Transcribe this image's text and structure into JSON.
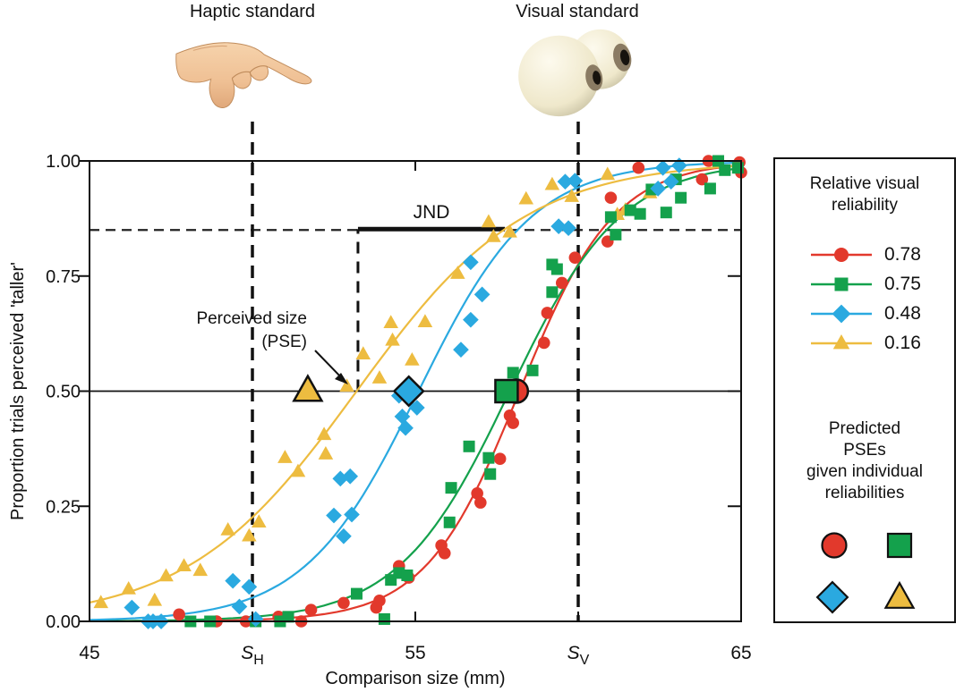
{
  "figure": {
    "haptic_label": "Haptic standard",
    "visual_label": "Visual standard"
  },
  "legend": {
    "title_lines": [
      "Relative visual",
      "reliability"
    ],
    "subtitle_lines": [
      "Predicted",
      "PSEs",
      "given individual",
      "reliabilities"
    ]
  },
  "chart_data": {
    "type": "scatter",
    "title": "",
    "xlabel": "Comparison size (mm)",
    "ylabel": "Proportion trials perceived 'taller'",
    "xlim": [
      45,
      65
    ],
    "ylim": [
      0,
      1
    ],
    "x_ticks": [
      {
        "v": 45,
        "label": "45"
      },
      {
        "v": 50,
        "label": "S",
        "sub": "H"
      },
      {
        "v": 55,
        "label": "55"
      },
      {
        "v": 60,
        "label": "S",
        "sub": "V"
      },
      {
        "v": 65,
        "label": "65"
      }
    ],
    "x_minor_ticks": [
      50,
      55,
      60
    ],
    "y_ticks": [
      {
        "v": 0.0,
        "label": "0.00"
      },
      {
        "v": 0.25,
        "label": "0.25"
      },
      {
        "v": 0.5,
        "label": "0.50"
      },
      {
        "v": 0.75,
        "label": "0.75"
      },
      {
        "v": 1.0,
        "label": "1.00"
      }
    ],
    "haptic_standard_mm": 50,
    "visual_standard_mm": 60,
    "solid_horizontal_proportion": 0.5,
    "dashed_horizontal_proportion": 0.85,
    "annotations": {
      "jnd_label": "JND",
      "jnd_bar": {
        "from_mm": 53.24,
        "to_mm": 57.75,
        "at_proportion": 0.852
      },
      "pse_vertical_mm": 53.24,
      "pse_label_lines": [
        "Perceived size",
        "(PSE)"
      ]
    },
    "series": [
      {
        "name": "0.78",
        "relative_visual_reliability": 0.78,
        "color": "#e2392c",
        "marker": "circle",
        "fitted_pse_mm": 58.2,
        "fitted_slope": 1.45,
        "predicted_pse_mm": 58.1,
        "points": [
          [
            47.75,
            0.015
          ],
          [
            48.9,
            0.0
          ],
          [
            49.8,
            0.0
          ],
          [
            50.8,
            0.01
          ],
          [
            51.5,
            0.0
          ],
          [
            51.8,
            0.025
          ],
          [
            52.8,
            0.04
          ],
          [
            53.8,
            0.03
          ],
          [
            53.9,
            0.045
          ],
          [
            54.5,
            0.12
          ],
          [
            54.8,
            0.095
          ],
          [
            55.8,
            0.165
          ],
          [
            55.9,
            0.148
          ],
          [
            56.9,
            0.278
          ],
          [
            57.0,
            0.258
          ],
          [
            57.6,
            0.353
          ],
          [
            57.9,
            0.447
          ],
          [
            58.0,
            0.431
          ],
          [
            58.95,
            0.605
          ],
          [
            59.05,
            0.67
          ],
          [
            59.5,
            0.735
          ],
          [
            59.9,
            0.79
          ],
          [
            60.9,
            0.825
          ],
          [
            61.0,
            0.92
          ],
          [
            61.85,
            0.985
          ],
          [
            63.8,
            0.96
          ],
          [
            64.0,
            1.0
          ],
          [
            64.95,
            0.997
          ],
          [
            65.0,
            0.975
          ]
        ]
      },
      {
        "name": "0.75",
        "relative_visual_reliability": 0.75,
        "color": "#14a14c",
        "marker": "square",
        "fitted_pse_mm": 57.9,
        "fitted_slope": 1.71,
        "predicted_pse_mm": 57.8,
        "points": [
          [
            48.1,
            0.0
          ],
          [
            48.7,
            0.0
          ],
          [
            50.1,
            0.0
          ],
          [
            50.85,
            0.0
          ],
          [
            51.1,
            0.01
          ],
          [
            53.2,
            0.06
          ],
          [
            54.05,
            0.005
          ],
          [
            54.25,
            0.09
          ],
          [
            54.5,
            0.105
          ],
          [
            54.75,
            0.1
          ],
          [
            56.05,
            0.215
          ],
          [
            56.1,
            0.29
          ],
          [
            56.65,
            0.38
          ],
          [
            57.25,
            0.355
          ],
          [
            57.3,
            0.32
          ],
          [
            58.0,
            0.54
          ],
          [
            58.6,
            0.545
          ],
          [
            59.2,
            0.715
          ],
          [
            59.2,
            0.775
          ],
          [
            59.35,
            0.765
          ],
          [
            61.0,
            0.878
          ],
          [
            61.15,
            0.84
          ],
          [
            61.6,
            0.893
          ],
          [
            61.9,
            0.885
          ],
          [
            62.25,
            0.938
          ],
          [
            62.7,
            0.888
          ],
          [
            63.0,
            0.96
          ],
          [
            63.15,
            0.92
          ],
          [
            64.05,
            0.94
          ],
          [
            64.3,
            1.0
          ],
          [
            64.5,
            0.98
          ],
          [
            64.9,
            0.985
          ]
        ]
      },
      {
        "name": "0.48",
        "relative_visual_reliability": 0.48,
        "color": "#2aa9e0",
        "marker": "diamond",
        "fitted_pse_mm": 55.1,
        "fitted_slope": 1.75,
        "predicted_pse_mm": 54.8,
        "points": [
          [
            46.3,
            0.03
          ],
          [
            46.8,
            0.0
          ],
          [
            46.95,
            0.0
          ],
          [
            47.2,
            0.0
          ],
          [
            49.4,
            0.088
          ],
          [
            49.6,
            0.032
          ],
          [
            49.9,
            0.075
          ],
          [
            50.1,
            0.005
          ],
          [
            52.5,
            0.23
          ],
          [
            52.7,
            0.31
          ],
          [
            52.8,
            0.185
          ],
          [
            53.0,
            0.315
          ],
          [
            53.05,
            0.232
          ],
          [
            54.5,
            0.49
          ],
          [
            54.6,
            0.445
          ],
          [
            54.7,
            0.42
          ],
          [
            55.05,
            0.464
          ],
          [
            56.4,
            0.59
          ],
          [
            56.7,
            0.655
          ],
          [
            56.7,
            0.78
          ],
          [
            57.05,
            0.71
          ],
          [
            59.4,
            0.858
          ],
          [
            59.7,
            0.854
          ],
          [
            59.6,
            0.955
          ],
          [
            59.9,
            0.957
          ],
          [
            62.45,
            0.94
          ],
          [
            62.6,
            0.985
          ],
          [
            62.85,
            0.955
          ],
          [
            63.1,
            0.99
          ]
        ]
      },
      {
        "name": "0.16",
        "relative_visual_reliability": 0.16,
        "color": "#edbc40",
        "marker": "triangle",
        "fitted_pse_mm": 53.2,
        "fitted_slope": 2.6,
        "predicted_pse_mm": 51.7,
        "points": [
          [
            45.35,
            0.04
          ],
          [
            46.2,
            0.07
          ],
          [
            47.0,
            0.045
          ],
          [
            47.35,
            0.098
          ],
          [
            47.9,
            0.12
          ],
          [
            48.4,
            0.11
          ],
          [
            49.25,
            0.198
          ],
          [
            49.9,
            0.185
          ],
          [
            50.2,
            0.215
          ],
          [
            51.0,
            0.355
          ],
          [
            51.4,
            0.325
          ],
          [
            52.2,
            0.405
          ],
          [
            52.25,
            0.363
          ],
          [
            52.9,
            0.51
          ],
          [
            53.4,
            0.58
          ],
          [
            53.9,
            0.528
          ],
          [
            54.25,
            0.648
          ],
          [
            54.3,
            0.61
          ],
          [
            54.9,
            0.567
          ],
          [
            55.3,
            0.65
          ],
          [
            56.3,
            0.755
          ],
          [
            57.25,
            0.867
          ],
          [
            57.4,
            0.835
          ],
          [
            57.9,
            0.845
          ],
          [
            58.4,
            0.917
          ],
          [
            59.2,
            0.948
          ],
          [
            59.8,
            0.922
          ],
          [
            60.9,
            0.97
          ],
          [
            61.2,
            0.883
          ],
          [
            61.45,
            0.893
          ],
          [
            62.2,
            0.93
          ]
        ]
      }
    ]
  }
}
